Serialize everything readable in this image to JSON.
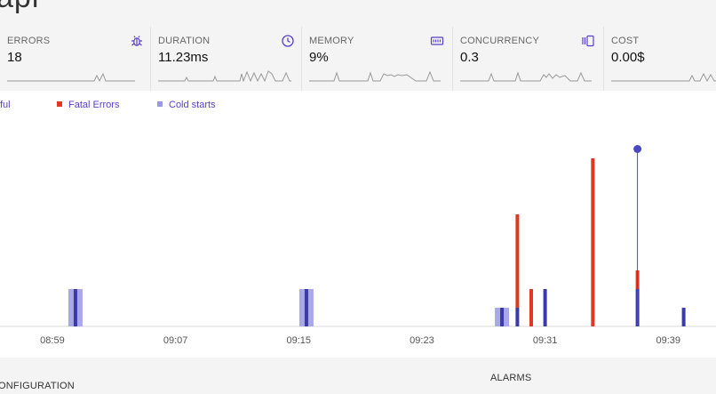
{
  "page": {
    "title": "api"
  },
  "metrics": [
    {
      "name": "ERRORS",
      "value": "18",
      "icon": "bug-icon"
    },
    {
      "name": "DURATION",
      "value": "11.23ms",
      "icon": "clock-icon"
    },
    {
      "name": "MEMORY",
      "value": "9%",
      "icon": "memory-icon"
    },
    {
      "name": "CONCURRENCY",
      "value": "0.3",
      "icon": "concurrency-icon"
    },
    {
      "name": "COST",
      "value": "0.00$",
      "icon": "cost-icon"
    }
  ],
  "legend": [
    {
      "label": "ful",
      "color": "#6f5fd6"
    },
    {
      "label": "Fatal Errors",
      "color": "#e0391f"
    },
    {
      "label": "Cold starts",
      "color": "#9a9ae0"
    }
  ],
  "colors": {
    "fatal": "#e0391f",
    "invocation": "#3b3aa8",
    "cold_start": "#a9a9e6",
    "marker": "#4a48c2",
    "accent": "#5a3ec8"
  },
  "chart_data": {
    "type": "bar",
    "x_ticks": [
      "08:59",
      "09:07",
      "09:15",
      "09:23",
      "09:31",
      "09:39"
    ],
    "x_tick_minutes": [
      539,
      547,
      555,
      563,
      571,
      579
    ],
    "xlim": [
      535.6,
      582.1
    ],
    "ylim": [
      0,
      10
    ],
    "grid": false,
    "legend_position": "top-left",
    "cold_starts": [
      {
        "t": 540.5,
        "value": 2
      },
      {
        "t": 555.5,
        "value": 2
      },
      {
        "t": 568.2,
        "value": 1
      }
    ],
    "invocations": [
      {
        "t": 540.5,
        "value": 2
      },
      {
        "t": 555.5,
        "value": 2
      },
      {
        "t": 568.2,
        "value": 1
      },
      {
        "t": 569.2,
        "value": 1
      },
      {
        "t": 571.0,
        "value": 2
      },
      {
        "t": 577.0,
        "value": 2
      },
      {
        "t": 580.0,
        "value": 1
      }
    ],
    "fatal_errors": [
      {
        "t": 569.2,
        "value": 5
      },
      {
        "t": 570.1,
        "value": 2
      },
      {
        "t": 574.1,
        "value": 9
      },
      {
        "t": 577.0,
        "value": 1
      }
    ],
    "markers": [
      {
        "t": 577.0,
        "value": 9.5
      }
    ]
  },
  "footer": {
    "left": "ONFIGURATION",
    "right": "ALARMS"
  }
}
